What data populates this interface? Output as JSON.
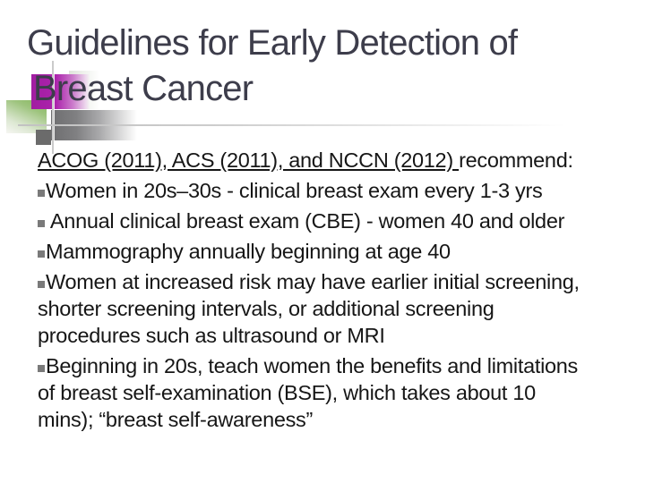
{
  "slide": {
    "title": {
      "line1": "Guidelines for Early Detection of",
      "line2": "Breast Cancer"
    },
    "body": {
      "intro": {
        "underlined": "ACOG (2011), ACS (2011), and NCCN (2012) ",
        "rest": "recommend:"
      },
      "bullets": [
        {
          "lines": [
            "Women in 20s–30s - clinical breast exam every 1-3 yrs"
          ]
        },
        {
          "lines": [
            " Annual clinical breast exam (CBE) - women 40 and older"
          ]
        },
        {
          "lines": [
            "Mammography annually beginning at age 40"
          ]
        },
        {
          "lines": [
            "Women at increased risk may have earlier initial screening,",
            "shorter screening intervals, or additional screening",
            "procedures such as ultrasound or MRI"
          ]
        },
        {
          "lines": [
            "Beginning in 20s, teach women the benefits and limitations",
            "of breast self-examination (BSE), which takes about 10",
            "mins); “breast self-awareness”"
          ]
        }
      ]
    },
    "colors": {
      "background": "#FFFFFF",
      "title_text": "#3D3D4B",
      "body_text": "#161616",
      "bullet_square": "#7A7A7A",
      "accent_magenta": "#AC23AC",
      "accent_green": "#84B55C",
      "accent_gray": "#6E6E70",
      "crosshair_line": "#C6C6C6"
    }
  }
}
